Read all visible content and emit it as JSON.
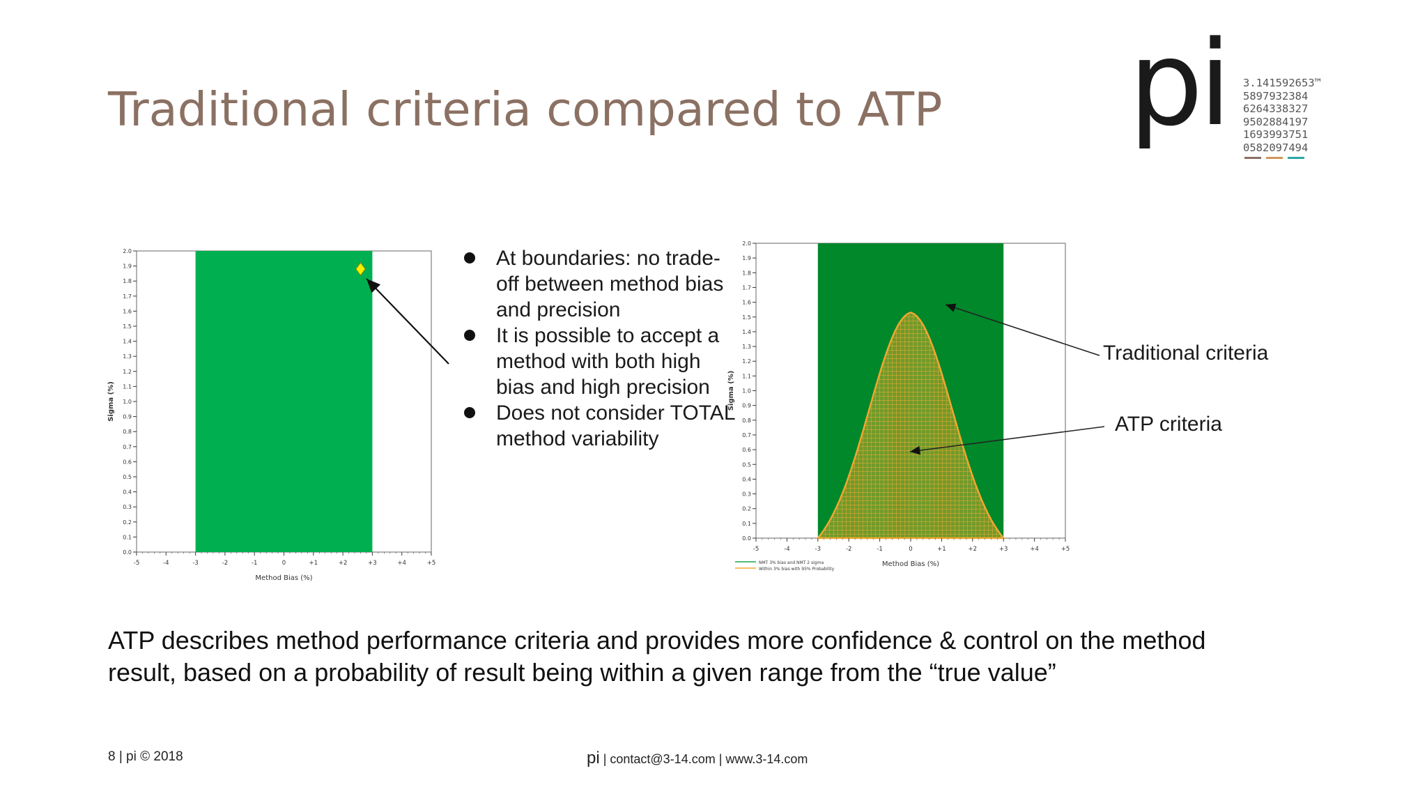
{
  "slide": {
    "title": "Traditional criteria compared to ATP",
    "bullets": [
      "At boundaries: no trade-off between method bias and precision",
      "It is possible to accept a method with both high bias and high precision",
      "Does not consider TOTAL method variability"
    ],
    "callouts": {
      "traditional": "Traditional criteria",
      "atp": "ATP criteria"
    },
    "summary": "ATP describes method performance criteria and provides more confidence & control on the method result, based on a probability of result being within a given range from the “true value”",
    "footer_left": "8 | pi © 2018",
    "footer_center_pi": "pi",
    "footer_center_rest": " | contact@3-14.com | www.3-14.com"
  },
  "logo": {
    "mark": "pi",
    "digits": [
      "3.141592653™",
      "5897932384",
      "6264338327",
      "9502884197",
      "1693993751",
      "0582097494"
    ],
    "bar_colors": [
      "#8b7163",
      "#d2965a",
      "#2aa7a6"
    ]
  },
  "colors": {
    "title": "#8b7163",
    "green_left": "#00b050",
    "green_right": "#00882b",
    "atp_outline": "#f0a830",
    "marker": "#f5f000"
  },
  "chart_data": [
    {
      "type": "area",
      "xlabel": "Method Bias (%)",
      "ylabel": "Sigma (%)",
      "xlim": [
        -5,
        5
      ],
      "ylim": [
        0,
        2.0
      ],
      "xticks": [
        "-5",
        "-4",
        "-3",
        "-2",
        "-1",
        "0",
        "+1",
        "+2",
        "+3",
        "+4",
        "+5"
      ],
      "yticks": [
        "0.0",
        "0.1",
        "0.2",
        "0.3",
        "0.4",
        "0.5",
        "0.6",
        "0.7",
        "0.8",
        "0.9",
        "1.0",
        "1.1",
        "1.2",
        "1.3",
        "1.4",
        "1.5",
        "1.6",
        "1.7",
        "1.8",
        "1.9",
        "2.0"
      ],
      "regions": [
        {
          "name": "Traditional criteria",
          "x": [
            -3,
            3
          ],
          "y": [
            0,
            2.0
          ]
        }
      ],
      "points": [
        {
          "x": 2.6,
          "y": 1.88,
          "marker": "diamond"
        }
      ]
    },
    {
      "type": "area",
      "xlabel": "Method Bias (%)",
      "ylabel": "Sigma (%)",
      "xlim": [
        -5,
        5
      ],
      "ylim": [
        0,
        2.0
      ],
      "xticks": [
        "-5",
        "-4",
        "-3",
        "-2",
        "-1",
        "0",
        "+1",
        "+2",
        "+3",
        "+4",
        "+5"
      ],
      "yticks": [
        "0.0",
        "0.1",
        "0.2",
        "0.3",
        "0.4",
        "0.5",
        "0.6",
        "0.7",
        "0.8",
        "0.9",
        "1.0",
        "1.1",
        "1.2",
        "1.3",
        "1.4",
        "1.5",
        "1.6",
        "1.7",
        "1.8",
        "1.9",
        "2.0"
      ],
      "regions": [
        {
          "name": "NMT 3% bias and NMT 2 sigma",
          "x": [
            -3,
            3
          ],
          "y": [
            0,
            2.0
          ]
        },
        {
          "name": "Within 3% bias with 95% Probability",
          "shape": "bell",
          "x": [
            -3,
            3
          ],
          "peak": 1.53
        }
      ],
      "legend": [
        "NMT 3% bias and NMT 2 sigma",
        "Within 3% bias with 95% Probability"
      ],
      "legend_placement": "bottom-left"
    }
  ]
}
